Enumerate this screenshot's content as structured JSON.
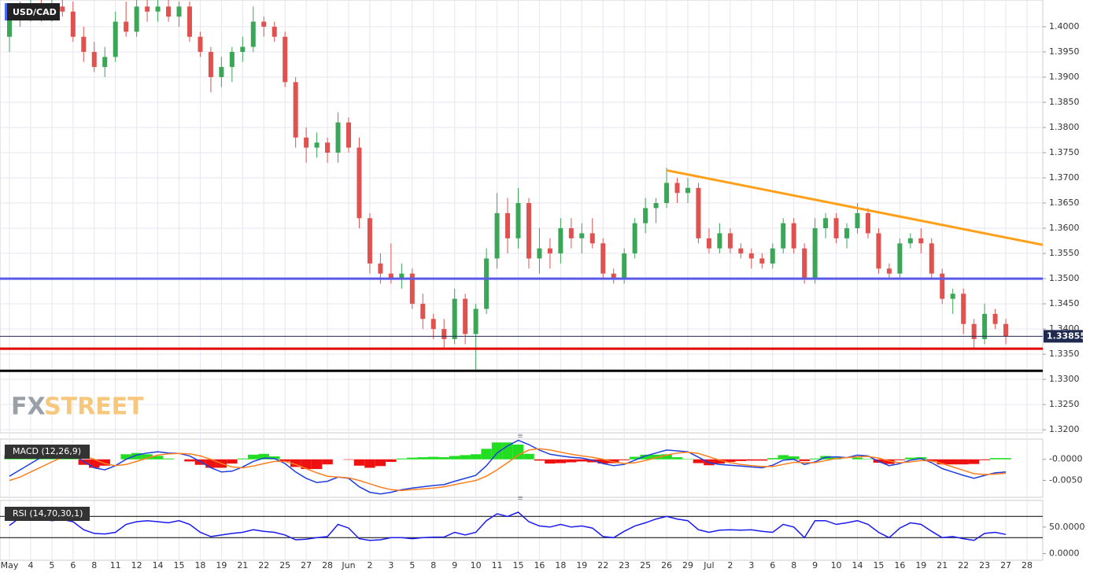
{
  "chart_data": {
    "type": "candlestick",
    "title": "USD/CAD",
    "watermark": {
      "left": "FX",
      "right": "STREET"
    },
    "categories": [
      "May",
      null,
      "4",
      null,
      "5",
      null,
      "6",
      null,
      "8",
      null,
      "11",
      null,
      "12",
      null,
      "14",
      null,
      "15",
      null,
      "18",
      null,
      "19",
      null,
      "21",
      null,
      "22",
      null,
      "25",
      null,
      "27",
      null,
      "28",
      null,
      "Jun",
      null,
      "2",
      null,
      "3",
      null,
      "5",
      null,
      "8",
      null,
      "9",
      null,
      "10",
      null,
      "11",
      null,
      "15",
      null,
      "16",
      null,
      "18",
      null,
      "19",
      null,
      "22",
      null,
      "23",
      null,
      "25",
      null,
      "26",
      null,
      "29",
      null,
      "Jul",
      null,
      "2",
      null,
      "3",
      null,
      "6",
      null,
      "8",
      null,
      "9",
      null,
      "10",
      null,
      "14",
      null,
      "15",
      null,
      "16",
      null,
      "19",
      null,
      "21",
      null,
      "22",
      null,
      "23",
      null,
      "27",
      null,
      "28"
    ],
    "open": [
      1.398,
      1.402,
      1.403,
      1.404,
      1.403,
      1.404,
      1.403,
      1.398,
      1.395,
      1.392,
      1.394,
      1.401,
      1.399,
      1.404,
      1.403,
      1.404,
      1.402,
      1.404,
      1.398,
      1.395,
      1.39,
      1.392,
      1.395,
      1.396,
      1.401,
      1.4,
      1.398,
      1.389,
      1.378,
      1.376,
      1.377,
      1.375,
      1.381,
      1.376,
      1.362,
      1.353,
      1.351,
      1.35,
      1.351,
      1.345,
      1.342,
      1.34,
      1.338,
      1.346,
      1.339,
      1.344,
      1.354,
      1.363,
      1.358,
      1.365,
      1.354,
      1.356,
      1.355,
      1.36,
      1.358,
      1.359,
      1.357,
      1.351,
      1.35,
      1.355,
      1.361,
      1.364,
      1.365,
      1.369,
      1.367,
      1.368,
      1.358,
      1.356,
      1.359,
      1.356,
      1.355,
      1.354,
      1.353,
      1.356,
      1.361,
      1.356,
      1.35,
      1.36,
      1.362,
      1.358,
      1.36,
      1.363,
      1.359,
      1.352,
      1.351,
      1.357,
      1.358,
      1.357,
      1.351,
      1.346,
      1.347,
      1.341,
      1.338,
      1.343,
      1.341,
      null,
      null
    ],
    "high": [
      1.404,
      1.405,
      1.406,
      1.406,
      1.406,
      1.406,
      1.405,
      1.4,
      1.397,
      1.396,
      1.403,
      1.405,
      1.406,
      1.406,
      1.406,
      1.406,
      1.405,
      1.405,
      1.399,
      1.396,
      1.394,
      1.396,
      1.398,
      1.404,
      1.402,
      1.401,
      1.399,
      1.39,
      1.38,
      1.379,
      1.378,
      1.383,
      1.382,
      1.378,
      1.363,
      1.355,
      1.357,
      1.353,
      1.352,
      1.347,
      1.343,
      1.342,
      1.348,
      1.347,
      1.345,
      1.356,
      1.367,
      1.366,
      1.368,
      1.366,
      1.36,
      1.358,
      1.362,
      1.362,
      1.361,
      1.362,
      1.358,
      1.352,
      1.356,
      1.362,
      1.366,
      1.366,
      1.372,
      1.37,
      1.37,
      1.369,
      1.36,
      1.361,
      1.36,
      1.357,
      1.356,
      1.355,
      1.357,
      1.362,
      1.362,
      1.357,
      1.362,
      1.363,
      1.363,
      1.361,
      1.365,
      1.364,
      1.36,
      1.353,
      1.358,
      1.359,
      1.36,
      1.358,
      1.352,
      1.348,
      1.348,
      1.342,
      1.345,
      1.344,
      1.342,
      null,
      null
    ],
    "low": [
      1.395,
      1.4,
      1.401,
      1.401,
      1.401,
      1.402,
      1.397,
      1.393,
      1.391,
      1.39,
      1.393,
      1.398,
      1.398,
      1.401,
      1.401,
      1.401,
      1.4,
      1.397,
      1.394,
      1.387,
      1.388,
      1.389,
      1.393,
      1.395,
      1.398,
      1.397,
      1.388,
      1.376,
      1.373,
      1.374,
      1.373,
      1.373,
      1.375,
      1.36,
      1.351,
      1.349,
      1.349,
      1.348,
      1.344,
      1.34,
      1.338,
      1.336,
      1.337,
      1.337,
      1.3315,
      1.343,
      1.352,
      1.355,
      1.356,
      1.352,
      1.351,
      1.352,
      1.353,
      1.356,
      1.355,
      1.356,
      1.35,
      1.349,
      1.349,
      1.354,
      1.359,
      1.361,
      1.364,
      1.365,
      1.365,
      1.357,
      1.355,
      1.355,
      1.355,
      1.354,
      1.352,
      1.352,
      1.352,
      1.355,
      1.355,
      1.349,
      1.349,
      1.358,
      1.357,
      1.356,
      1.359,
      1.358,
      1.351,
      1.35,
      1.35,
      1.356,
      1.355,
      1.35,
      1.345,
      1.343,
      1.339,
      1.336,
      1.337,
      1.34,
      1.337,
      null,
      null
    ],
    "close": [
      1.402,
      1.403,
      1.404,
      1.403,
      1.404,
      1.403,
      1.398,
      1.395,
      1.392,
      1.394,
      1.401,
      1.399,
      1.404,
      1.403,
      1.404,
      1.402,
      1.404,
      1.398,
      1.395,
      1.39,
      1.392,
      1.395,
      1.396,
      1.401,
      1.4,
      1.398,
      1.389,
      1.378,
      1.376,
      1.377,
      1.375,
      1.381,
      1.376,
      1.362,
      1.353,
      1.351,
      1.35,
      1.351,
      1.345,
      1.342,
      1.34,
      1.338,
      1.346,
      1.339,
      1.344,
      1.354,
      1.363,
      1.358,
      1.365,
      1.354,
      1.356,
      1.355,
      1.36,
      1.358,
      1.359,
      1.357,
      1.351,
      1.35,
      1.355,
      1.361,
      1.364,
      1.365,
      1.369,
      1.367,
      1.368,
      1.358,
      1.356,
      1.359,
      1.356,
      1.355,
      1.354,
      1.353,
      1.356,
      1.361,
      1.356,
      1.35,
      1.36,
      1.362,
      1.358,
      1.36,
      1.363,
      1.359,
      1.352,
      1.351,
      1.357,
      1.358,
      1.357,
      1.351,
      1.346,
      1.347,
      1.341,
      1.338,
      1.343,
      1.341,
      1.33855,
      null,
      null
    ],
    "up_color": "#3aa757",
    "down_color": "#e0524f",
    "last_price": 1.33855,
    "levels": [
      {
        "value": 1.35,
        "color": "#5a5ae8"
      },
      {
        "value": 1.3361,
        "color": "#e00000"
      },
      {
        "value": 1.3317,
        "color": "#000000"
      }
    ],
    "trendline": {
      "color": "#ff9f1a",
      "values": [
        1.3715,
        1.3567
      ]
    },
    "ylim": [
      1.3194,
      1.4053
    ],
    "yticks": [
      {
        "value": 1.32,
        "label": "1.3200"
      },
      {
        "value": 1.325,
        "label": "1.3250"
      },
      {
        "value": 1.33,
        "label": "1.3300"
      },
      {
        "value": 1.335,
        "label": "1.3350"
      },
      {
        "value": 1.34,
        "label": "1.3400"
      },
      {
        "value": 1.345,
        "label": "1.3450"
      },
      {
        "value": 1.35,
        "label": "1.3500"
      },
      {
        "value": 1.355,
        "label": "1.3550"
      },
      {
        "value": 1.36,
        "label": "1.3600"
      },
      {
        "value": 1.365,
        "label": "1.3650"
      },
      {
        "value": 1.37,
        "label": "1.3700"
      },
      {
        "value": 1.375,
        "label": "1.3750"
      },
      {
        "value": 1.38,
        "label": "1.3800"
      },
      {
        "value": 1.385,
        "label": "1.3850"
      },
      {
        "value": 1.39,
        "label": "1.3900"
      },
      {
        "value": 1.395,
        "label": "1.3950"
      },
      {
        "value": 1.4,
        "label": "1.4000"
      }
    ],
    "grid": true,
    "macd": {
      "type": "macd",
      "title": "MACD (12,26,9)",
      "ylim": [
        -0.009,
        0.0048
      ],
      "yticks": [
        {
          "value": 0,
          "label": "-0.0000"
        },
        {
          "value": -0.005,
          "label": "-0.0050"
        }
      ],
      "histogram": {
        "up_color": "#22dd22",
        "down_color": "#ee1111",
        "values": [
          0.001,
          0.0017,
          0.002,
          0.0023,
          0.0018,
          0.0013,
          0.0002,
          -0.0013,
          -0.002,
          -0.0015,
          0,
          0.0012,
          0.0015,
          0.0012,
          0.0008,
          0.0002,
          0,
          -0.0005,
          -0.0013,
          -0.002,
          -0.002,
          -0.001,
          0.0002,
          0.0011,
          0.0013,
          0.0007,
          -0.0005,
          -0.0018,
          -0.0023,
          -0.0023,
          -0.0012,
          0,
          -0.0001,
          -0.0015,
          -0.002,
          -0.0016,
          -0.0006,
          0.0002,
          0.0004,
          0.0005,
          0.0006,
          0.0005,
          0.0008,
          0.001,
          0.0012,
          0.0025,
          0.004,
          0.004,
          0.0035,
          0.0013,
          -0.0003,
          -0.001,
          -0.0009,
          -0.0007,
          -0.0005,
          -0.0007,
          -0.001,
          -0.0009,
          -0.0002,
          0.0006,
          0.0011,
          0.0011,
          0.0012,
          0.0005,
          0.0001,
          -0.0009,
          -0.0014,
          -0.001,
          -0.0006,
          -0.0004,
          -0.0003,
          -0.0003,
          0.0003,
          0.001,
          0.0007,
          -0.0004,
          0.0002,
          0.0008,
          0.0004,
          0,
          0.0004,
          0.0001,
          -0.0008,
          -0.0011,
          -0.0002,
          0.0004,
          0.0005,
          -0.0004,
          -0.0012,
          -0.0012,
          -0.0012,
          -0.0011,
          -0.0002,
          0.0003,
          0.0003,
          null,
          null
        ]
      },
      "series": [
        {
          "color": "#1f3fdd",
          "values": [
            -0.004,
            -0.0025,
            -0.001,
            0.0005,
            0.0012,
            0.0018,
            0.0012,
            -0.0005,
            -0.002,
            -0.0025,
            -0.0015,
            0,
            0.001,
            0.0015,
            0.0018,
            0.0015,
            0.0014,
            0.0008,
            -0.0005,
            -0.002,
            -0.003,
            -0.0028,
            -0.0018,
            -0.0005,
            0.0003,
            0.0002,
            -0.001,
            -0.003,
            -0.0045,
            -0.0055,
            -0.0052,
            -0.0042,
            -0.0045,
            -0.0065,
            -0.0078,
            -0.0082,
            -0.0078,
            -0.0072,
            -0.0068,
            -0.0065,
            -0.0062,
            -0.006,
            -0.0052,
            -0.0045,
            -0.0038,
            -0.0015,
            0.0015,
            0.0032,
            0.0045,
            0.0035,
            0.0022,
            0.0012,
            0.0008,
            0.0005,
            0.0003,
            -0.0002,
            -0.001,
            -0.0015,
            -0.0012,
            -0.0002,
            0.0008,
            0.0015,
            0.0022,
            0.002,
            0.0018,
            0.0005,
            -0.0008,
            -0.0012,
            -0.0014,
            -0.0016,
            -0.0018,
            -0.002,
            -0.0014,
            -0.0002,
            0,
            -0.0012,
            -0.0006,
            0.0005,
            0.0006,
            0.0004,
            0.001,
            0.0008,
            -0.0005,
            -0.0015,
            -0.001,
            -0.0002,
            0.0002,
            -0.0008,
            -0.0022,
            -0.003,
            -0.0038,
            -0.0045,
            -0.0038,
            -0.0032,
            -0.003,
            null,
            null
          ]
        },
        {
          "color": "#ff7f1e",
          "values": [
            -0.005,
            -0.0042,
            -0.003,
            -0.0018,
            -0.0006,
            0.0005,
            0.001,
            0.0008,
            0,
            -0.001,
            -0.0015,
            -0.0012,
            -0.0005,
            0.0003,
            0.001,
            0.0013,
            0.0014,
            0.0013,
            0.0008,
            0,
            -0.001,
            -0.0018,
            -0.002,
            -0.0016,
            -0.001,
            -0.0005,
            -0.0005,
            -0.0012,
            -0.0022,
            -0.0032,
            -0.004,
            -0.0042,
            -0.0044,
            -0.005,
            -0.0058,
            -0.0066,
            -0.0072,
            -0.0074,
            -0.0072,
            -0.007,
            -0.0068,
            -0.0065,
            -0.006,
            -0.0055,
            -0.005,
            -0.004,
            -0.0025,
            -0.0008,
            0.001,
            0.0022,
            0.0025,
            0.0022,
            0.0017,
            0.0012,
            0.0008,
            0.0005,
            0,
            -0.0006,
            -0.001,
            -0.0008,
            -0.0003,
            0.0004,
            0.001,
            0.0015,
            0.0017,
            0.0014,
            0.0006,
            -0.0002,
            -0.0008,
            -0.0012,
            -0.0015,
            -0.0017,
            -0.0017,
            -0.0012,
            -0.0007,
            -0.0008,
            -0.0008,
            -0.0003,
            0.0002,
            0.0004,
            0.0006,
            0.0007,
            0.0003,
            -0.0004,
            -0.0008,
            -0.0006,
            -0.0003,
            -0.0004,
            -0.001,
            -0.0018,
            -0.0026,
            -0.0034,
            -0.0036,
            -0.0035,
            -0.0033,
            null,
            null
          ]
        }
      ]
    },
    "rsi": {
      "type": "rsi",
      "title": "RSI (14,70,30,1)",
      "ylim": [
        -12.5,
        100
      ],
      "yticks": [
        {
          "value": 50,
          "label": "50.0000"
        },
        {
          "value": 0,
          "label": "0.0000"
        }
      ],
      "levels": [
        70,
        30
      ],
      "series": [
        {
          "color": "#1a1aee",
          "values": [
            53,
            68,
            70,
            66,
            62,
            64,
            60,
            45,
            38,
            37,
            40,
            55,
            60,
            62,
            60,
            58,
            62,
            55,
            40,
            32,
            35,
            38,
            40,
            45,
            42,
            40,
            35,
            26,
            27,
            30,
            32,
            55,
            48,
            28,
            25,
            26,
            30,
            30,
            28,
            30,
            31,
            31,
            40,
            35,
            40,
            62,
            75,
            70,
            78,
            60,
            52,
            50,
            55,
            50,
            52,
            48,
            32,
            30,
            42,
            52,
            58,
            65,
            70,
            65,
            62,
            45,
            40,
            44,
            45,
            44,
            45,
            42,
            40,
            55,
            50,
            30,
            62,
            62,
            55,
            58,
            62,
            55,
            40,
            30,
            48,
            58,
            55,
            42,
            30,
            32,
            28,
            25,
            38,
            40,
            36,
            null,
            null
          ]
        }
      ]
    }
  }
}
